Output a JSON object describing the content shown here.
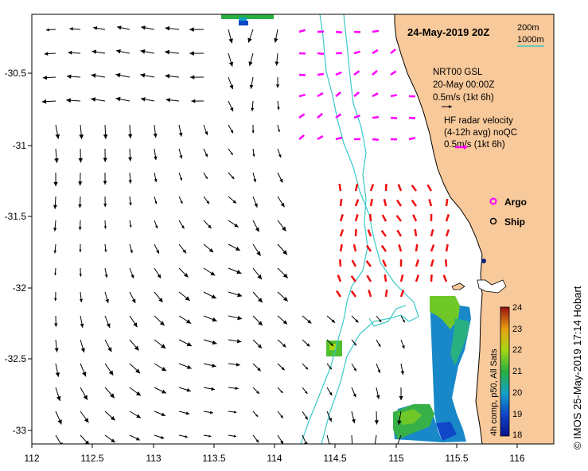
{
  "title": "24-May-2019 20Z",
  "depth_contours": {
    "labels": [
      "200m",
      "1000m"
    ],
    "color_1000m": "#3ac8c8",
    "color_200m": "#3ac8c8"
  },
  "legend": {
    "model_name": "NRT00 GSL",
    "model_time": "20-May 00:00Z",
    "model_scale": "0.5m/s (1kt 6h)",
    "radar_title": "HF radar velocity",
    "radar_sub": "(4-12h avg) noQC",
    "radar_scale": "0.5m/s (1kt 6h)",
    "argo_label": "Argo",
    "ship_label": "Ship",
    "argo_color": "#ff00ff"
  },
  "colorbar": {
    "ticks": [
      "24",
      "23",
      "22",
      "21",
      "20",
      "19",
      "18"
    ],
    "label": "4h comp, p50, All Sats",
    "min": 18,
    "max": 24
  },
  "axes": {
    "x_ticks": [
      "112",
      "112.5",
      "113",
      "113.5",
      "114",
      "114.5",
      "115",
      "115.5",
      "116"
    ],
    "y_ticks": [
      "-30.5",
      "-31",
      "-31.5",
      "-32",
      "-32.5",
      "-33"
    ],
    "x_range": [
      112,
      116.3
    ],
    "y_range": [
      -33.1,
      -30.1
    ]
  },
  "credit": "© IMOS 25-May-2019 17:14 Hobart",
  "colors": {
    "land": "#f8c99a",
    "model_arrows": "#000000",
    "radar_arrows_north": "#ff00ff",
    "radar_arrows_south": "#ee1111",
    "contour": "#3ac8c8"
  }
}
